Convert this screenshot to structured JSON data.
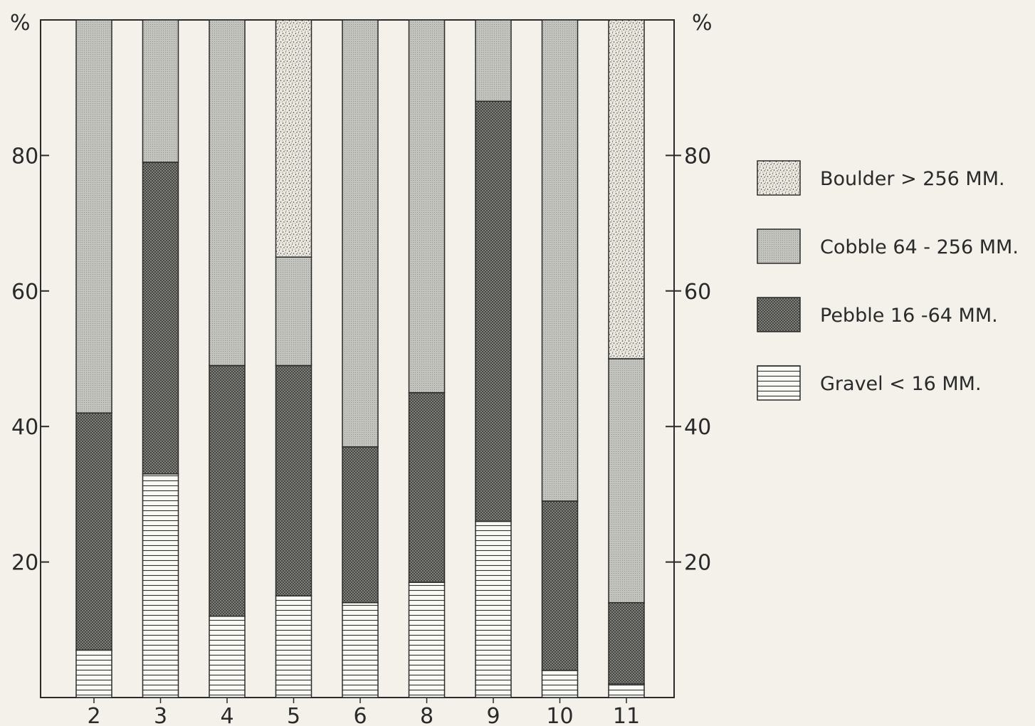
{
  "chart_data": {
    "type": "bar",
    "stacked": true,
    "title": "",
    "xlabel": "",
    "ylabel": "%",
    "ylabel_right": "%",
    "ylim": [
      0,
      100
    ],
    "yticks": [
      20,
      40,
      60,
      80
    ],
    "grid": false,
    "legend_position": "right",
    "categories": [
      "2",
      "3",
      "4",
      "5",
      "6",
      "8",
      "9",
      "10",
      "11"
    ],
    "series": [
      {
        "name": "Gravel < 16 MM.",
        "values": [
          7,
          33,
          12,
          15,
          14,
          17,
          26,
          4,
          2
        ],
        "color": "#fafaf4",
        "pattern": "hlines"
      },
      {
        "name": "Pebble 16 -64 MM.",
        "values": [
          35,
          46,
          37,
          34,
          23,
          28,
          62,
          25,
          12
        ],
        "color": "#8f8f8a",
        "pattern": "crosshatch"
      },
      {
        "name": "Cobble 64 - 256 MM.",
        "values": [
          58,
          21,
          51,
          16,
          63,
          55,
          12,
          71,
          36
        ],
        "color": "#c2c2bd",
        "pattern": "fine"
      },
      {
        "name": "Boulder > 256 MM.",
        "values": [
          0,
          0,
          0,
          35,
          0,
          0,
          0,
          0,
          50
        ],
        "color": "#e6e4dc",
        "pattern": "stipple"
      }
    ],
    "legend_order": [
      "Boulder > 256 MM.",
      "Cobble 64 - 256 MM.",
      "Pebble 16 -64 MM.",
      "Gravel < 16 MM."
    ]
  }
}
